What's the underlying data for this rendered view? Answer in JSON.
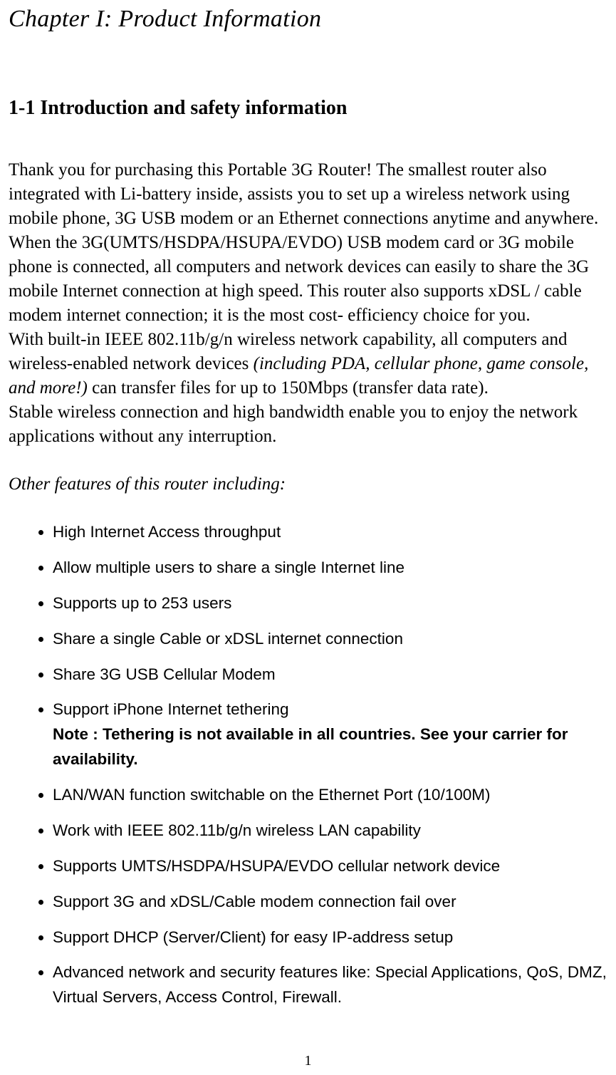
{
  "chapter_title": "Chapter I: Product Information",
  "section_heading": "1-1 Introduction and safety information",
  "paragraphs": {
    "p1": "Thank you for purchasing this Portable 3G Router! The smallest router also integrated with Li-battery inside, assists you to set up a wireless network using mobile phone, 3G USB modem or an Ethernet connections anytime and anywhere. When the 3G(UMTS/HSDPA/HSUPA/EVDO) USB modem card or 3G mobile phone is connected, all computers and network devices can easily to share the 3G mobile Internet connection at high speed. This router also supports xDSL / cable modem internet connection; it is the most cost- efficiency choice for you.",
    "p2_pre": "With built-in IEEE 802.11b/g/n wireless network capability, all computers and wireless-enabled network devices ",
    "p2_italic": "(including PDA, cellular phone, game console, and more!)",
    "p2_post": " can transfer files for up to   150Mbps (transfer data rate).",
    "p3": "Stable wireless connection and high bandwidth enable you to enjoy the network applications without any interruption."
  },
  "features_intro": "Other features of this router including:",
  "features": {
    "f1": "High Internet Access throughput",
    "f2": "Allow multiple users to share a single Internet line",
    "f3": "Supports up to 253 users",
    "f4": "Share a single Cable or xDSL internet connection",
    "f5": "Share 3G USB Cellular Modem",
    "f6_main": "Support iPhone Internet tethering",
    "f6_note": "Note : Tethering is not available in all countries. See your carrier for availability.",
    "f7": "LAN/WAN function switchable on the Ethernet Port (10/100M)",
    "f8": "Work with IEEE 802.11b/g/n wireless LAN capability",
    "f9": "Supports UMTS/HSDPA/HSUPA/EVDO cellular network device",
    "f10": "Support 3G and xDSL/Cable modem connection fail over",
    "f11": "Support DHCP (Server/Client) for easy IP-address setup",
    "f12": "Advanced network and security features like: Special Applications, QoS, DMZ, Virtual Servers, Access Control, Firewall."
  },
  "page_number": "1",
  "colors": {
    "background": "#ffffff",
    "text": "#000000"
  },
  "typography": {
    "serif_family": "Times New Roman",
    "sans_family": "Arial",
    "chapter_title_size": 34,
    "section_heading_size": 28,
    "body_size": 25,
    "list_size": 22.5
  }
}
